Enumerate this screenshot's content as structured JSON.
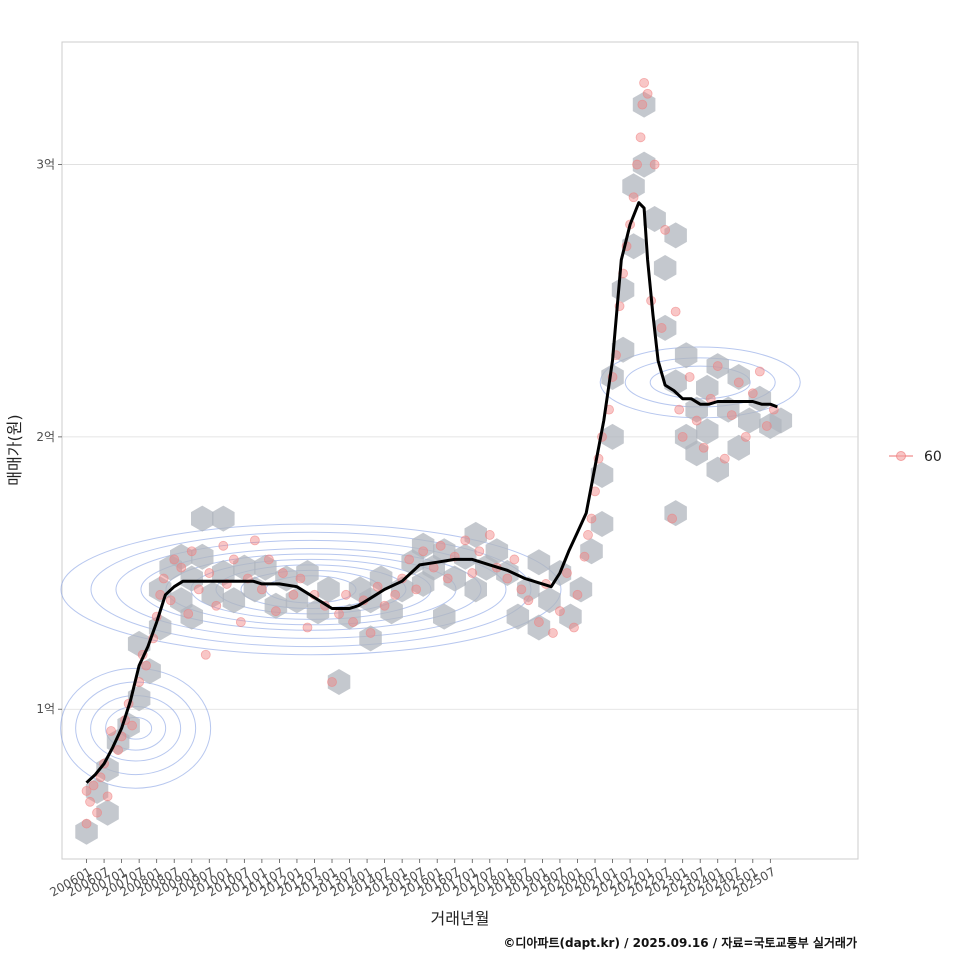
{
  "chart_data": {
    "type": "line",
    "xlabel": "거래년월",
    "ylabel": "매매가(원)",
    "caption": "©디아파트(dapt.kr) / 2025.09.16 / 자료=국토교통부 실거래가",
    "legend": {
      "position": "right",
      "entries": [
        "60"
      ]
    },
    "ylim": [
      0.45,
      3.45
    ],
    "y_ticks": [
      {
        "value": 1,
        "label": "1억"
      },
      {
        "value": 2,
        "label": "2억"
      },
      {
        "value": 3,
        "label": "3억"
      }
    ],
    "x_tick_labels": [
      "200601",
      "200607",
      "200701",
      "200707",
      "200801",
      "200807",
      "200901",
      "200907",
      "201001",
      "201007",
      "201101",
      "201107",
      "201201",
      "201207",
      "201301",
      "201307",
      "201401",
      "201407",
      "201501",
      "201507",
      "201601",
      "201607",
      "201701",
      "201707",
      "201801",
      "201807",
      "201901",
      "201907",
      "202001",
      "202007",
      "202101",
      "202107",
      "202201",
      "202207",
      "202301",
      "202307",
      "202401",
      "202407",
      "202501",
      "202507"
    ],
    "x_range_years": [
      2005.3,
      2028.0
    ],
    "grid": true,
    "colors": {
      "trend_line": "#000000",
      "points": "#f08080",
      "hexbin": "#b0b6bd",
      "density_contours": "#6f8fe0",
      "panel_border": "#cccccc",
      "grid": "#dddddd"
    },
    "series": [
      {
        "name": "60",
        "x": [
          2006.0,
          2006.25,
          2006.5,
          2006.75,
          2007.0,
          2007.25,
          2007.5,
          2007.75,
          2008.0,
          2008.25,
          2008.5,
          2008.75,
          2009.0,
          2009.25,
          2009.5,
          2009.75,
          2010.0,
          2010.25,
          2010.5,
          2010.75,
          2011.0,
          2011.5,
          2012.0,
          2012.5,
          2013.0,
          2013.25,
          2013.5,
          2013.75,
          2014.0,
          2014.5,
          2015.0,
          2015.5,
          2016.0,
          2016.5,
          2017.0,
          2017.5,
          2018.0,
          2018.5,
          2019.0,
          2019.25,
          2019.5,
          2019.75,
          2020.0,
          2020.25,
          2020.5,
          2020.75,
          2021.0,
          2021.25,
          2021.5,
          2021.75,
          2021.9,
          2022.0,
          2022.15,
          2022.3,
          2022.5,
          2022.75,
          2023.0,
          2023.25,
          2023.5,
          2023.75,
          2024.0,
          2024.25,
          2024.5,
          2024.75,
          2025.0,
          2025.25,
          2025.5,
          2025.7
        ],
        "y": [
          0.73,
          0.76,
          0.8,
          0.86,
          0.93,
          1.03,
          1.16,
          1.23,
          1.32,
          1.42,
          1.45,
          1.47,
          1.47,
          1.47,
          1.47,
          1.47,
          1.47,
          1.47,
          1.47,
          1.47,
          1.46,
          1.46,
          1.45,
          1.41,
          1.37,
          1.37,
          1.37,
          1.38,
          1.4,
          1.44,
          1.47,
          1.53,
          1.54,
          1.55,
          1.55,
          1.53,
          1.51,
          1.48,
          1.46,
          1.45,
          1.5,
          1.58,
          1.65,
          1.72,
          1.89,
          2.06,
          2.28,
          2.65,
          2.78,
          2.86,
          2.84,
          2.65,
          2.45,
          2.28,
          2.19,
          2.17,
          2.14,
          2.14,
          2.12,
          2.12,
          2.13,
          2.13,
          2.13,
          2.13,
          2.13,
          2.12,
          2.12,
          2.11
        ]
      }
    ],
    "scatter_points": [
      [
        2006.0,
        0.58
      ],
      [
        2006.0,
        0.7
      ],
      [
        2006.1,
        0.66
      ],
      [
        2006.2,
        0.72
      ],
      [
        2006.3,
        0.62
      ],
      [
        2006.4,
        0.75
      ],
      [
        2006.5,
        0.8
      ],
      [
        2006.6,
        0.68
      ],
      [
        2006.7,
        0.92
      ],
      [
        2006.9,
        0.85
      ],
      [
        2007.0,
        0.9
      ],
      [
        2007.1,
        0.96
      ],
      [
        2007.2,
        1.02
      ],
      [
        2007.3,
        0.94
      ],
      [
        2007.5,
        1.1
      ],
      [
        2007.6,
        1.2
      ],
      [
        2007.7,
        1.16
      ],
      [
        2007.9,
        1.26
      ],
      [
        2008.0,
        1.34
      ],
      [
        2008.1,
        1.42
      ],
      [
        2008.2,
        1.48
      ],
      [
        2008.4,
        1.4
      ],
      [
        2008.5,
        1.55
      ],
      [
        2008.7,
        1.52
      ],
      [
        2008.9,
        1.35
      ],
      [
        2009.0,
        1.58
      ],
      [
        2009.2,
        1.44
      ],
      [
        2009.4,
        1.2
      ],
      [
        2009.5,
        1.5
      ],
      [
        2009.7,
        1.38
      ],
      [
        2009.9,
        1.6
      ],
      [
        2010.0,
        1.46
      ],
      [
        2010.2,
        1.55
      ],
      [
        2010.4,
        1.32
      ],
      [
        2010.6,
        1.48
      ],
      [
        2010.8,
        1.62
      ],
      [
        2011.0,
        1.44
      ],
      [
        2011.2,
        1.55
      ],
      [
        2011.4,
        1.36
      ],
      [
        2011.6,
        1.5
      ],
      [
        2011.9,
        1.42
      ],
      [
        2012.1,
        1.48
      ],
      [
        2012.3,
        1.3
      ],
      [
        2012.5,
        1.42
      ],
      [
        2012.8,
        1.38
      ],
      [
        2013.0,
        1.1
      ],
      [
        2013.2,
        1.35
      ],
      [
        2013.4,
        1.42
      ],
      [
        2013.6,
        1.32
      ],
      [
        2013.9,
        1.4
      ],
      [
        2014.1,
        1.28
      ],
      [
        2014.3,
        1.45
      ],
      [
        2014.5,
        1.38
      ],
      [
        2014.8,
        1.42
      ],
      [
        2015.0,
        1.48
      ],
      [
        2015.2,
        1.55
      ],
      [
        2015.4,
        1.44
      ],
      [
        2015.6,
        1.58
      ],
      [
        2015.9,
        1.52
      ],
      [
        2016.1,
        1.6
      ],
      [
        2016.3,
        1.48
      ],
      [
        2016.5,
        1.56
      ],
      [
        2016.8,
        1.62
      ],
      [
        2017.0,
        1.5
      ],
      [
        2017.2,
        1.58
      ],
      [
        2017.5,
        1.64
      ],
      [
        2017.7,
        1.52
      ],
      [
        2018.0,
        1.48
      ],
      [
        2018.2,
        1.55
      ],
      [
        2018.4,
        1.44
      ],
      [
        2018.6,
        1.4
      ],
      [
        2018.9,
        1.32
      ],
      [
        2019.1,
        1.46
      ],
      [
        2019.3,
        1.28
      ],
      [
        2019.5,
        1.36
      ],
      [
        2019.7,
        1.5
      ],
      [
        2019.9,
        1.3
      ],
      [
        2020.0,
        1.42
      ],
      [
        2020.2,
        1.56
      ],
      [
        2020.3,
        1.64
      ],
      [
        2020.4,
        1.7
      ],
      [
        2020.5,
        1.8
      ],
      [
        2020.6,
        1.92
      ],
      [
        2020.7,
        2.0
      ],
      [
        2020.9,
        2.1
      ],
      [
        2021.0,
        2.22
      ],
      [
        2021.1,
        2.3
      ],
      [
        2021.2,
        2.48
      ],
      [
        2021.3,
        2.6
      ],
      [
        2021.4,
        2.7
      ],
      [
        2021.5,
        2.78
      ],
      [
        2021.6,
        2.88
      ],
      [
        2021.7,
        3.0
      ],
      [
        2021.8,
        3.1
      ],
      [
        2021.85,
        3.22
      ],
      [
        2021.9,
        3.3
      ],
      [
        2022.0,
        3.26
      ],
      [
        2022.1,
        2.5
      ],
      [
        2022.2,
        3.0
      ],
      [
        2022.4,
        2.4
      ],
      [
        2022.5,
        2.76
      ],
      [
        2022.7,
        1.7
      ],
      [
        2022.8,
        2.46
      ],
      [
        2022.9,
        2.1
      ],
      [
        2023.0,
        2.0
      ],
      [
        2023.2,
        2.22
      ],
      [
        2023.4,
        2.06
      ],
      [
        2023.6,
        1.96
      ],
      [
        2023.8,
        2.14
      ],
      [
        2024.0,
        2.26
      ],
      [
        2024.2,
        1.92
      ],
      [
        2024.4,
        2.08
      ],
      [
        2024.6,
        2.2
      ],
      [
        2024.8,
        2.0
      ],
      [
        2025.0,
        2.16
      ],
      [
        2025.2,
        2.24
      ],
      [
        2025.4,
        2.04
      ],
      [
        2025.6,
        2.1
      ]
    ],
    "hexbin_centers": [
      [
        2006.0,
        0.55
      ],
      [
        2006.3,
        0.7
      ],
      [
        2006.6,
        0.62
      ],
      [
        2006.6,
        0.78
      ],
      [
        2006.9,
        0.88
      ],
      [
        2007.2,
        0.94
      ],
      [
        2007.5,
        1.04
      ],
      [
        2007.5,
        1.24
      ],
      [
        2007.8,
        1.14
      ],
      [
        2008.1,
        1.3
      ],
      [
        2008.1,
        1.44
      ],
      [
        2008.4,
        1.52
      ],
      [
        2008.7,
        1.4
      ],
      [
        2008.7,
        1.56
      ],
      [
        2009.0,
        1.34
      ],
      [
        2009.0,
        1.48
      ],
      [
        2009.3,
        1.56
      ],
      [
        2009.3,
        1.7
      ],
      [
        2009.6,
        1.42
      ],
      [
        2009.9,
        1.5
      ],
      [
        2009.9,
        1.7
      ],
      [
        2010.2,
        1.4
      ],
      [
        2010.5,
        1.52
      ],
      [
        2010.8,
        1.44
      ],
      [
        2011.1,
        1.52
      ],
      [
        2011.4,
        1.38
      ],
      [
        2011.7,
        1.48
      ],
      [
        2012.0,
        1.4
      ],
      [
        2012.3,
        1.5
      ],
      [
        2012.6,
        1.36
      ],
      [
        2012.9,
        1.44
      ],
      [
        2013.2,
        1.1
      ],
      [
        2013.5,
        1.34
      ],
      [
        2013.8,
        1.44
      ],
      [
        2014.1,
        1.26
      ],
      [
        2014.1,
        1.4
      ],
      [
        2014.4,
        1.48
      ],
      [
        2014.7,
        1.36
      ],
      [
        2015.0,
        1.44
      ],
      [
        2015.3,
        1.54
      ],
      [
        2015.6,
        1.46
      ],
      [
        2015.6,
        1.6
      ],
      [
        2015.9,
        1.52
      ],
      [
        2016.2,
        1.34
      ],
      [
        2016.2,
        1.58
      ],
      [
        2016.5,
        1.48
      ],
      [
        2016.8,
        1.56
      ],
      [
        2017.1,
        1.44
      ],
      [
        2017.1,
        1.64
      ],
      [
        2017.4,
        1.52
      ],
      [
        2017.7,
        1.58
      ],
      [
        2018.0,
        1.5
      ],
      [
        2018.3,
        1.34
      ],
      [
        2018.6,
        1.44
      ],
      [
        2018.9,
        1.3
      ],
      [
        2018.9,
        1.54
      ],
      [
        2019.2,
        1.4
      ],
      [
        2019.5,
        1.5
      ],
      [
        2019.8,
        1.34
      ],
      [
        2020.1,
        1.44
      ],
      [
        2020.4,
        1.58
      ],
      [
        2020.7,
        1.68
      ],
      [
        2020.7,
        1.86
      ],
      [
        2021.0,
        2.0
      ],
      [
        2021.0,
        2.22
      ],
      [
        2021.3,
        2.32
      ],
      [
        2021.3,
        2.54
      ],
      [
        2021.6,
        2.7
      ],
      [
        2021.6,
        2.92
      ],
      [
        2021.9,
        3.0
      ],
      [
        2021.9,
        3.22
      ],
      [
        2022.2,
        2.8
      ],
      [
        2022.5,
        2.62
      ],
      [
        2022.5,
        2.4
      ],
      [
        2022.8,
        2.74
      ],
      [
        2022.8,
        2.2
      ],
      [
        2022.8,
        1.72
      ],
      [
        2023.1,
        2.3
      ],
      [
        2023.1,
        2.0
      ],
      [
        2023.4,
        2.1
      ],
      [
        2023.4,
        1.94
      ],
      [
        2023.7,
        2.18
      ],
      [
        2023.7,
        2.02
      ],
      [
        2024.0,
        2.26
      ],
      [
        2024.0,
        1.88
      ],
      [
        2024.3,
        2.1
      ],
      [
        2024.6,
        2.22
      ],
      [
        2024.6,
        1.96
      ],
      [
        2024.9,
        2.06
      ],
      [
        2025.2,
        2.14
      ],
      [
        2025.5,
        2.04
      ],
      [
        2025.8,
        2.06
      ]
    ]
  }
}
